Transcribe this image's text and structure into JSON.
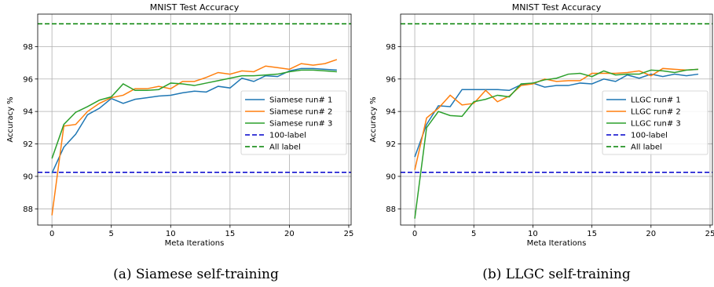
{
  "chart_data": [
    {
      "type": "line",
      "title": "MNIST Test Accuracy",
      "caption": "(a) Siamese self-training",
      "x_label": "Meta Iterations",
      "y_label": "Accuracy %",
      "x": [
        0,
        1,
        2,
        3,
        4,
        5,
        6,
        7,
        8,
        9,
        10,
        11,
        12,
        13,
        14,
        15,
        16,
        17,
        18,
        19,
        20,
        21,
        22,
        23,
        24
      ],
      "series": [
        {
          "name": "Siamese run# 1",
          "color": "#1f77b4",
          "values": [
            90.2,
            91.8,
            92.6,
            93.8,
            94.2,
            94.8,
            94.5,
            94.75,
            94.85,
            94.95,
            95.0,
            95.15,
            95.25,
            95.2,
            95.55,
            95.45,
            96.05,
            95.85,
            96.2,
            96.15,
            96.5,
            96.65,
            96.65,
            96.6,
            96.55
          ]
        },
        {
          "name": "Siamese run# 2",
          "color": "#ff7f0e",
          "values": [
            87.6,
            93.1,
            93.2,
            94.0,
            94.5,
            94.85,
            95.0,
            95.4,
            95.4,
            95.55,
            95.4,
            95.85,
            95.85,
            96.1,
            96.4,
            96.3,
            96.5,
            96.45,
            96.8,
            96.7,
            96.6,
            96.95,
            96.85,
            96.95,
            97.2
          ]
        },
        {
          "name": "Siamese run# 3",
          "color": "#2ca02c",
          "values": [
            91.1,
            93.2,
            93.95,
            94.3,
            94.7,
            94.9,
            95.7,
            95.3,
            95.3,
            95.35,
            95.75,
            95.7,
            95.6,
            95.75,
            95.9,
            96.05,
            96.2,
            96.2,
            96.25,
            96.3,
            96.45,
            96.55,
            96.55,
            96.5,
            96.45
          ]
        }
      ],
      "hlines": [
        {
          "name": "100-label",
          "color": "#0000cc",
          "value": 90.25
        },
        {
          "name": "All label",
          "color": "#008000",
          "value": 99.4
        }
      ],
      "xlim": [
        -1.2,
        25.2
      ],
      "xticks": [
        0,
        5,
        10,
        15,
        20,
        25
      ],
      "ylim": [
        87.0,
        100.0
      ],
      "yticks": [
        88,
        90,
        92,
        94,
        96,
        98
      ],
      "grid": true,
      "legend": "center right"
    },
    {
      "type": "line",
      "title": "MNIST Test Accuracy",
      "caption": "(b) LLGC self-training",
      "x_label": "Meta Iterations",
      "y_label": "Accuracy %",
      "x": [
        0,
        1,
        2,
        3,
        4,
        5,
        6,
        7,
        8,
        9,
        10,
        11,
        12,
        13,
        14,
        15,
        16,
        17,
        18,
        19,
        20,
        21,
        22,
        23,
        24
      ],
      "series": [
        {
          "name": "LLGC run# 1",
          "color": "#1f77b4",
          "values": [
            91.2,
            93.2,
            94.35,
            94.3,
            95.35,
            95.35,
            95.35,
            95.35,
            95.3,
            95.65,
            95.75,
            95.5,
            95.6,
            95.6,
            95.75,
            95.7,
            96.0,
            95.85,
            96.25,
            96.05,
            96.3,
            96.15,
            96.3,
            96.2,
            96.3
          ]
        },
        {
          "name": "LLGC run# 2",
          "color": "#ff7f0e",
          "values": [
            90.4,
            93.6,
            94.2,
            95.0,
            94.4,
            94.5,
            95.3,
            94.6,
            94.95,
            95.6,
            95.7,
            96.0,
            95.85,
            95.9,
            95.9,
            96.35,
            96.35,
            96.35,
            96.4,
            96.5,
            96.2,
            96.65,
            96.6,
            96.55,
            96.6
          ]
        },
        {
          "name": "LLGC run# 3",
          "color": "#2ca02c",
          "values": [
            87.4,
            93.0,
            94.0,
            93.75,
            93.7,
            94.6,
            94.75,
            95.0,
            94.9,
            95.7,
            95.75,
            95.95,
            96.05,
            96.3,
            96.35,
            96.15,
            96.5,
            96.25,
            96.3,
            96.3,
            96.55,
            96.5,
            96.4,
            96.55,
            96.6
          ]
        }
      ],
      "hlines": [
        {
          "name": "100-label",
          "color": "#0000cc",
          "value": 90.25
        },
        {
          "name": "All label",
          "color": "#008000",
          "value": 99.4
        }
      ],
      "xlim": [
        -1.2,
        25.2
      ],
      "xticks": [
        0,
        5,
        10,
        15,
        20,
        25
      ],
      "ylim": [
        87.0,
        100.0
      ],
      "yticks": [
        88,
        90,
        92,
        94,
        96,
        98
      ],
      "grid": true,
      "legend": "center right"
    }
  ]
}
